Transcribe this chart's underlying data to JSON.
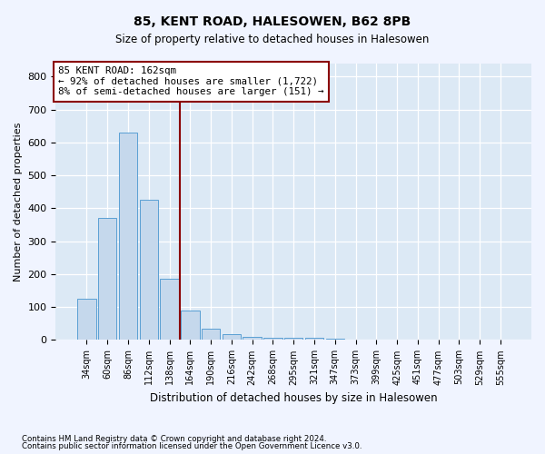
{
  "title1": "85, KENT ROAD, HALESOWEN, B62 8PB",
  "title2": "Size of property relative to detached houses in Halesowen",
  "xlabel": "Distribution of detached houses by size in Halesowen",
  "ylabel": "Number of detached properties",
  "footer1": "Contains HM Land Registry data © Crown copyright and database right 2024.",
  "footer2": "Contains public sector information licensed under the Open Government Licence v3.0.",
  "annotation_line1": "85 KENT ROAD: 162sqm",
  "annotation_line2": "← 92% of detached houses are smaller (1,722)",
  "annotation_line3": "8% of semi-detached houses are larger (151) →",
  "bar_labels": [
    "34sqm",
    "60sqm",
    "86sqm",
    "112sqm",
    "138sqm",
    "164sqm",
    "190sqm",
    "216sqm",
    "242sqm",
    "268sqm",
    "295sqm",
    "321sqm",
    "347sqm",
    "373sqm",
    "399sqm",
    "425sqm",
    "451sqm",
    "477sqm",
    "503sqm",
    "529sqm",
    "555sqm"
  ],
  "bar_values": [
    125,
    370,
    630,
    425,
    185,
    90,
    35,
    18,
    10,
    8,
    7,
    7,
    5,
    0,
    0,
    0,
    0,
    0,
    0,
    0,
    0
  ],
  "bar_color": "#c5d8ec",
  "bar_edge_color": "#5a9fd4",
  "vline_color": "#8b0000",
  "annotation_box_color": "#8b0000",
  "background_color": "#dce9f5",
  "grid_color": "#ffffff",
  "fig_background": "#f0f4ff",
  "ylim": [
    0,
    840
  ],
  "yticks": [
    0,
    100,
    200,
    300,
    400,
    500,
    600,
    700,
    800
  ]
}
